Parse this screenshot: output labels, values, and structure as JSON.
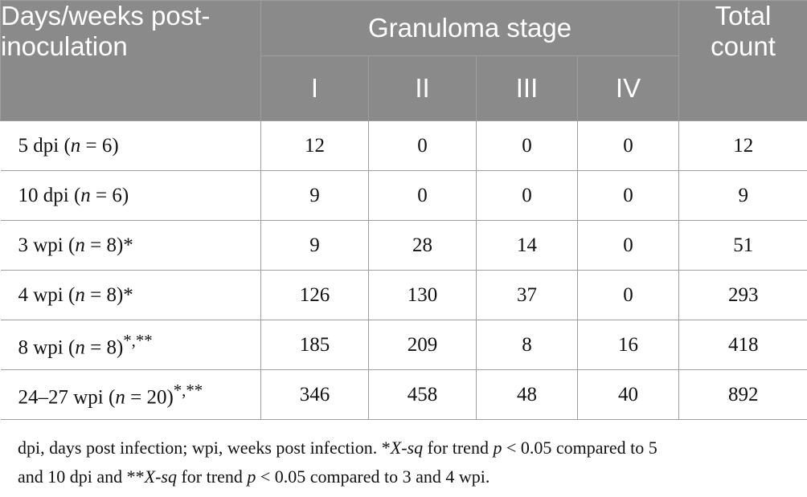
{
  "header": {
    "days_label": "Days/weeks post-inoculation",
    "group_label": "Granuloma stage",
    "total_label": "Total count",
    "stages": [
      "I",
      "II",
      "III",
      "IV"
    ]
  },
  "rows": [
    {
      "time": "5 dpi",
      "n": "6",
      "mark": "",
      "values": [
        "12",
        "0",
        "0",
        "0"
      ],
      "total": "12"
    },
    {
      "time": "10 dpi",
      "n": "6",
      "mark": "",
      "values": [
        "9",
        "0",
        "0",
        "0"
      ],
      "total": "9"
    },
    {
      "time": "3 wpi",
      "n": "8",
      "mark": "*",
      "values": [
        "9",
        "28",
        "14",
        "0"
      ],
      "total": "51"
    },
    {
      "time": "4 wpi",
      "n": "8",
      "mark": "*",
      "values": [
        "126",
        "130",
        "37",
        "0"
      ],
      "total": "293"
    },
    {
      "time": "8 wpi",
      "n": "8",
      "mark": "*,**",
      "values": [
        "185",
        "209",
        "8",
        "16"
      ],
      "total": "418"
    },
    {
      "time": "24–27 wpi",
      "n": "20",
      "mark": "*,**",
      "values": [
        "346",
        "458",
        "48",
        "40"
      ],
      "total": "892"
    }
  ],
  "footnote": {
    "abbrev": "dpi, days post infection; wpi, weeks post infection.",
    "star1": "*",
    "xsq": "X-sq",
    "trend": "for trend",
    "p": "p",
    "cmp1": "< 0.05 compared to 5",
    "cmp1b": "and 10 dpi and",
    "star2": "**",
    "cmp2": "< 0.05 compared to 3 and 4 wpi."
  }
}
